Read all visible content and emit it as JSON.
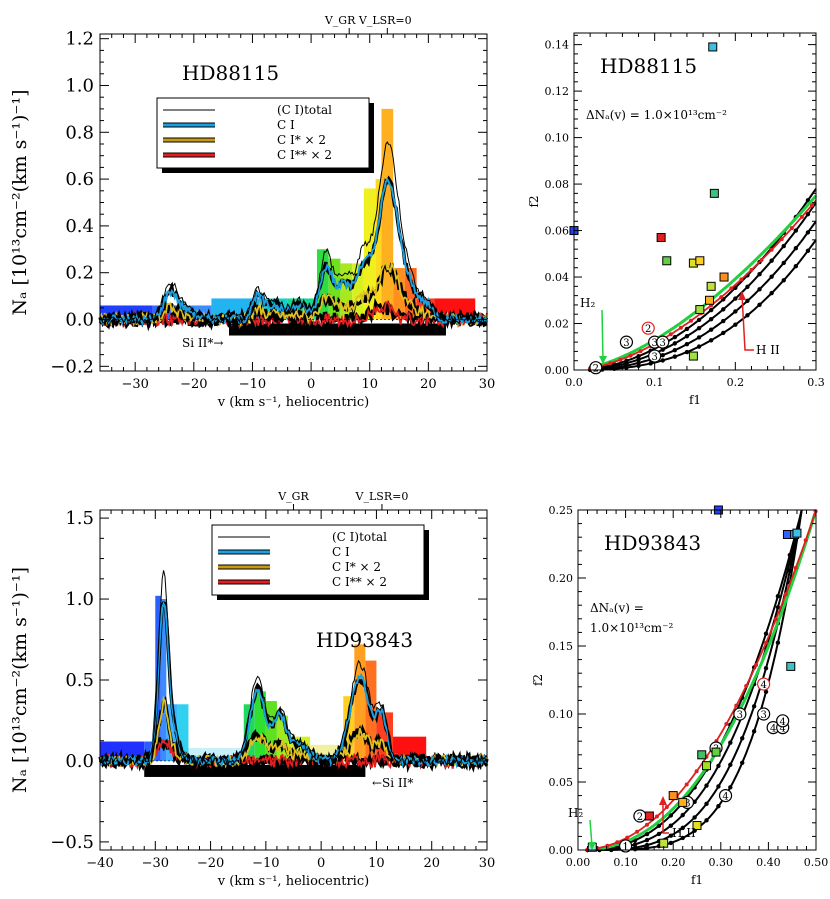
{
  "chart_data": [
    {
      "type": "line",
      "star": "HD88115",
      "xlabel": "v (km s⁻¹, heliocentric)",
      "ylabel": "Nₐ [10¹³cm⁻²(km s⁻¹)⁻¹]",
      "xlim": [
        -36,
        30
      ],
      "ylim": [
        -0.22,
        1.22
      ],
      "xticks": [
        -30,
        -20,
        -10,
        0,
        10,
        20,
        30
      ],
      "yticks": [
        -0.2,
        0.0,
        0.2,
        0.4,
        0.6,
        0.8,
        1.0,
        1.2
      ],
      "ytick_labels": [
        "−0.2",
        "0.0",
        "0.2",
        "0.4",
        "0.6",
        "0.8",
        "1.0",
        "1.2"
      ],
      "xtick_labels": [
        "−30",
        "−20",
        "−10",
        "0",
        "10",
        "20",
        "30"
      ],
      "top_label": "V_GR V_LSR=0",
      "top_marks": [
        6.5,
        13
      ],
      "legend": [
        "(C I)total",
        "C I",
        "C I* × 2",
        "C I** × 2"
      ],
      "legend_colors": [
        "#000000",
        "#1aa0e0",
        "#c89a10",
        "#e02020"
      ],
      "annotation": "Si II*→",
      "blend_bar": [
        -14,
        23
      ],
      "bars": [
        {
          "x0": -36,
          "x1": -27,
          "v": 0.06,
          "c": "#2040ff"
        },
        {
          "x0": -27,
          "x1": -23,
          "v": 0.06,
          "c": "#2a6cff"
        },
        {
          "x0": -23,
          "x1": -17,
          "v": 0.06,
          "c": "#3a8cff"
        },
        {
          "x0": -17,
          "x1": -8,
          "v": 0.09,
          "c": "#22b4f0"
        },
        {
          "x0": -8,
          "x1": -4,
          "v": 0.09,
          "c": "#18d0c8"
        },
        {
          "x0": -4,
          "x1": 1,
          "v": 0.09,
          "c": "#18d890"
        },
        {
          "x0": 1,
          "x1": 3,
          "v": 0.3,
          "c": "#30dc40"
        },
        {
          "x0": 3,
          "x1": 5,
          "v": 0.26,
          "c": "#70e020"
        },
        {
          "x0": 5,
          "x1": 7,
          "v": 0.24,
          "c": "#a8e820"
        },
        {
          "x0": 7,
          "x1": 9,
          "v": 0.24,
          "c": "#d8f020"
        },
        {
          "x0": 9,
          "x1": 11,
          "v": 0.56,
          "c": "#f0f020"
        },
        {
          "x0": 11,
          "x1": 12,
          "v": 0.6,
          "c": "#ffd820"
        },
        {
          "x0": 12,
          "x1": 14,
          "v": 0.9,
          "c": "#ffb020"
        },
        {
          "x0": 14,
          "x1": 16,
          "v": 0.22,
          "c": "#ff9020"
        },
        {
          "x0": 16,
          "x1": 18,
          "v": 0.22,
          "c": "#ff6a20"
        },
        {
          "x0": 18,
          "x1": 21,
          "v": 0.09,
          "c": "#ff3a20"
        },
        {
          "x0": 21,
          "x1": 28,
          "v": 0.09,
          "c": "#ff1010"
        }
      ],
      "peaks": [
        {
          "c": -24,
          "w": 1.2,
          "a": 0.15
        },
        {
          "c": -21,
          "w": 1.5,
          "a": 0.05
        },
        {
          "c": -9,
          "w": 1.0,
          "a": 0.13
        },
        {
          "c": -6,
          "w": 1.2,
          "a": 0.08
        },
        {
          "c": -2,
          "w": 1.4,
          "a": 0.08
        },
        {
          "c": 2.5,
          "w": 1.1,
          "a": 0.28
        },
        {
          "c": 5.5,
          "w": 1.3,
          "a": 0.18
        },
        {
          "c": 9,
          "w": 1.4,
          "a": 0.28
        },
        {
          "c": 13,
          "w": 1.6,
          "a": 0.72
        },
        {
          "c": 16,
          "w": 1.6,
          "a": 0.2
        },
        {
          "c": 19.5,
          "w": 1.3,
          "a": 0.08
        }
      ],
      "ci_scale": 0.78,
      "cis_scale": 0.3,
      "ciss_scale": 0.06,
      "ciss_peak": 12,
      "noise": 0.018
    },
    {
      "type": "scatter",
      "star": "HD88115",
      "annotation": "ΔNₐ(v) = 1.0×10¹³cm⁻²",
      "xlabel": "f1",
      "ylabel": "f2",
      "xlim": [
        0,
        0.3
      ],
      "ylim": [
        0,
        0.145
      ],
      "xticks": [
        0.0,
        0.1,
        0.2,
        0.3
      ],
      "xtick_labels": [
        "0.0",
        "0.1",
        "0.2",
        "0.3"
      ],
      "yticks": [
        0,
        0.02,
        0.04,
        0.06,
        0.08,
        0.1,
        0.12,
        0.14
      ],
      "ytick_labels": [
        "0.00",
        "0.02",
        "0.04",
        "0.06",
        "0.08",
        "0.10",
        "0.12",
        "0.14"
      ],
      "h2_label": "H₂",
      "hii_label": "H II",
      "curve_exponents": [
        1.95,
        2.1,
        2.3,
        2.6
      ],
      "curve_scales": [
        0.078,
        0.072,
        0.064,
        0.056
      ],
      "points": [
        {
          "x": 0.172,
          "y": 0.139,
          "c": "#40c0e0"
        },
        {
          "x": 0.174,
          "y": 0.076,
          "c": "#40c080"
        },
        {
          "x": 0.108,
          "y": 0.057,
          "c": "#e02020"
        },
        {
          "x": 0.115,
          "y": 0.047,
          "c": "#60d040"
        },
        {
          "x": 0.148,
          "y": 0.046,
          "c": "#e0e020"
        },
        {
          "x": 0.156,
          "y": 0.047,
          "c": "#ffd020"
        },
        {
          "x": 0.17,
          "y": 0.036,
          "c": "#c0e040"
        },
        {
          "x": 0.186,
          "y": 0.04,
          "c": "#ff9020"
        },
        {
          "x": 0.168,
          "y": 0.03,
          "c": "#ffb020"
        },
        {
          "x": 0.156,
          "y": 0.026,
          "c": "#a0e040"
        },
        {
          "x": 0.148,
          "y": 0.006,
          "c": "#a0e040"
        },
        {
          "x": 0.0,
          "y": 0.06,
          "c": "#2040ff"
        }
      ],
      "circled": [
        "2",
        "3",
        "3",
        "3",
        "3",
        "2"
      ]
    },
    {
      "type": "line",
      "star": "HD93843",
      "xlabel": "v (km s⁻¹, heliocentric)",
      "ylabel": "Nₐ [10¹³cm⁻²(km s⁻¹)⁻¹]",
      "xlim": [
        -40,
        30
      ],
      "ylim": [
        -0.55,
        1.55
      ],
      "xticks": [
        -40,
        -30,
        -20,
        -10,
        0,
        10,
        20,
        30
      ],
      "xtick_labels": [
        "−40",
        "−30",
        "−20",
        "−10",
        "0",
        "10",
        "20",
        "30"
      ],
      "yticks": [
        -0.5,
        0.0,
        0.5,
        1.0,
        1.5
      ],
      "ytick_labels": [
        "−0.5",
        "0.0",
        "0.5",
        "1.0",
        "1.5"
      ],
      "top_label_gr": "V_GR",
      "top_label_lsr": "V_LSR=0",
      "top_marks": [
        -5,
        11
      ],
      "legend": [
        "(C I)total",
        "C I",
        "C I* × 2",
        "C I** × 2"
      ],
      "legend_colors": [
        "#000000",
        "#1aa0e0",
        "#c89a10",
        "#e02020"
      ],
      "annotation": "←Si II*",
      "blend_bar": [
        -32,
        8
      ],
      "bars": [
        {
          "x0": -40,
          "x1": -32,
          "v": 0.12,
          "c": "#2030ff"
        },
        {
          "x0": -32,
          "x1": -30,
          "v": 0.12,
          "c": "#2a5cff"
        },
        {
          "x0": -30,
          "x1": -29,
          "v": 1.02,
          "c": "#2a60ff"
        },
        {
          "x0": -29,
          "x1": -28,
          "v": 1.0,
          "c": "#3a8cff"
        },
        {
          "x0": -28,
          "x1": -26,
          "v": 0.35,
          "c": "#40b0ff"
        },
        {
          "x0": -26,
          "x1": -24,
          "v": 0.35,
          "c": "#30d0f0"
        },
        {
          "x0": -24,
          "x1": -14,
          "v": 0.08,
          "c": "#c8f0f8"
        },
        {
          "x0": -14,
          "x1": -12,
          "v": 0.35,
          "c": "#20d860"
        },
        {
          "x0": -12,
          "x1": -10,
          "v": 0.43,
          "c": "#30e030"
        },
        {
          "x0": -10,
          "x1": -8,
          "v": 0.37,
          "c": "#60e020"
        },
        {
          "x0": -8,
          "x1": -6,
          "v": 0.28,
          "c": "#a0e820"
        },
        {
          "x0": -6,
          "x1": -2,
          "v": 0.15,
          "c": "#d0f020"
        },
        {
          "x0": -2,
          "x1": 4,
          "v": 0.1,
          "c": "#f0f0a0"
        },
        {
          "x0": 4,
          "x1": 6,
          "v": 0.4,
          "c": "#ffd020"
        },
        {
          "x0": 6,
          "x1": 8,
          "v": 0.72,
          "c": "#ffa020"
        },
        {
          "x0": 8,
          "x1": 10,
          "v": 0.62,
          "c": "#ff7020"
        },
        {
          "x0": 10,
          "x1": 13,
          "v": 0.3,
          "c": "#ff4020"
        },
        {
          "x0": 13,
          "x1": 19,
          "v": 0.15,
          "c": "#ff1010"
        }
      ],
      "peaks": [
        {
          "c": -28.5,
          "w": 0.9,
          "a": 1.15
        },
        {
          "c": -26.5,
          "w": 1.0,
          "a": 0.15
        },
        {
          "c": -11.5,
          "w": 1.4,
          "a": 0.52
        },
        {
          "c": -7.5,
          "w": 1.2,
          "a": 0.32
        },
        {
          "c": -4,
          "w": 1.6,
          "a": 0.12
        },
        {
          "c": 7,
          "w": 1.8,
          "a": 0.6
        },
        {
          "c": 11,
          "w": 1.0,
          "a": 0.3
        }
      ],
      "ci_scale": 0.85,
      "cis_scale": 0.3,
      "ciss_scale": 0.12,
      "ciss_peak": -28.5,
      "noise": 0.025
    },
    {
      "type": "scatter",
      "star": "HD93843",
      "annotation_line1": "ΔNₐ(v) =",
      "annotation_line2": "1.0×10¹³cm⁻²",
      "xlabel": "f1",
      "ylabel": "f2",
      "xlim": [
        0,
        0.5
      ],
      "ylim": [
        0,
        0.25
      ],
      "xticks": [
        0.0,
        0.1,
        0.2,
        0.3,
        0.4,
        0.5
      ],
      "xtick_labels": [
        "0.00",
        "0.10",
        "0.20",
        "0.30",
        "0.40",
        "0.50"
      ],
      "yticks": [
        0,
        0.05,
        0.1,
        0.15,
        0.2,
        0.25
      ],
      "ytick_labels": [
        "0.00",
        "0.05",
        "0.10",
        "0.15",
        "0.20",
        "0.25"
      ],
      "h2_label": "H₂",
      "hii_label": "H II",
      "curve_exponents": [
        2.6,
        3.0,
        3.6,
        4.4
      ],
      "curve_scales": [
        0.25,
        0.25,
        0.25,
        0.25
      ],
      "points": [
        {
          "x": 0.44,
          "y": 0.232,
          "c": "#3060ff"
        },
        {
          "x": 0.455,
          "y": 0.232,
          "c": "#40a0ff"
        },
        {
          "x": 0.46,
          "y": 0.233,
          "c": "#40c0e0"
        },
        {
          "x": 0.295,
          "y": 0.25,
          "c": "#2040ff"
        },
        {
          "x": 0.447,
          "y": 0.135,
          "c": "#40c0c0"
        },
        {
          "x": 0.26,
          "y": 0.07,
          "c": "#40c060"
        },
        {
          "x": 0.29,
          "y": 0.072,
          "c": "#60d040"
        },
        {
          "x": 0.27,
          "y": 0.062,
          "c": "#a0e020"
        },
        {
          "x": 0.2,
          "y": 0.04,
          "c": "#ff9020"
        },
        {
          "x": 0.22,
          "y": 0.035,
          "c": "#ffb020"
        },
        {
          "x": 0.25,
          "y": 0.018,
          "c": "#e0e020"
        },
        {
          "x": 0.15,
          "y": 0.025,
          "c": "#e02020"
        },
        {
          "x": 0.18,
          "y": 0.005,
          "c": "#c0e040"
        },
        {
          "x": 0.03,
          "y": 0.002,
          "c": "#a0e0f0"
        }
      ],
      "circled": [
        "4",
        "4",
        "4",
        "4",
        "4",
        "3",
        "3",
        "3",
        "3",
        "2",
        "1"
      ]
    }
  ]
}
